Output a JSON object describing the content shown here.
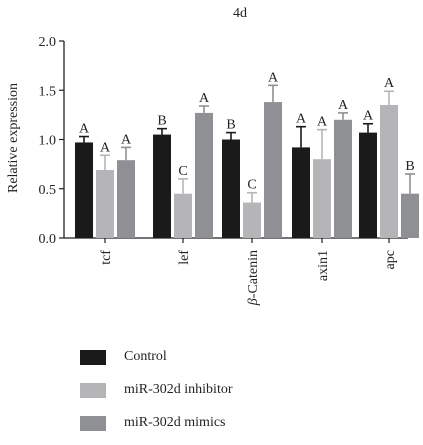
{
  "chart_data": {
    "type": "bar",
    "title": "4d",
    "ylabel": "Relative expression",
    "xlabel": "",
    "ylim": [
      0,
      2.0
    ],
    "yticks": [
      "0.0",
      "0.5",
      "1.0",
      "1.5",
      "2.0"
    ],
    "categories": [
      "tcf",
      "lef",
      "β-Catenin",
      "axin1",
      "apc"
    ],
    "series": [
      {
        "name": "Control",
        "color": "#1a1a1a",
        "values": [
          0.97,
          1.05,
          1.0,
          0.92,
          1.07
        ],
        "errors": [
          0.06,
          0.06,
          0.07,
          0.21,
          0.09
        ],
        "letters": [
          "A",
          "B",
          "B",
          "A",
          "A"
        ]
      },
      {
        "name": "miR-302d inhibitor",
        "color": "#b5b5b7",
        "values": [
          0.69,
          0.45,
          0.36,
          0.8,
          1.35
        ],
        "errors": [
          0.15,
          0.15,
          0.1,
          0.3,
          0.14
        ],
        "letters": [
          "A",
          "C",
          "C",
          "A",
          "A"
        ]
      },
      {
        "name": "miR-302d mimics",
        "color": "#8f9093",
        "values": [
          0.79,
          1.27,
          1.38,
          1.2,
          0.45
        ],
        "errors": [
          0.13,
          0.07,
          0.17,
          0.07,
          0.2
        ],
        "letters": [
          "A",
          "A",
          "A",
          "A",
          "B"
        ]
      }
    ],
    "legend_position": "bottom-left",
    "grid": false
  }
}
